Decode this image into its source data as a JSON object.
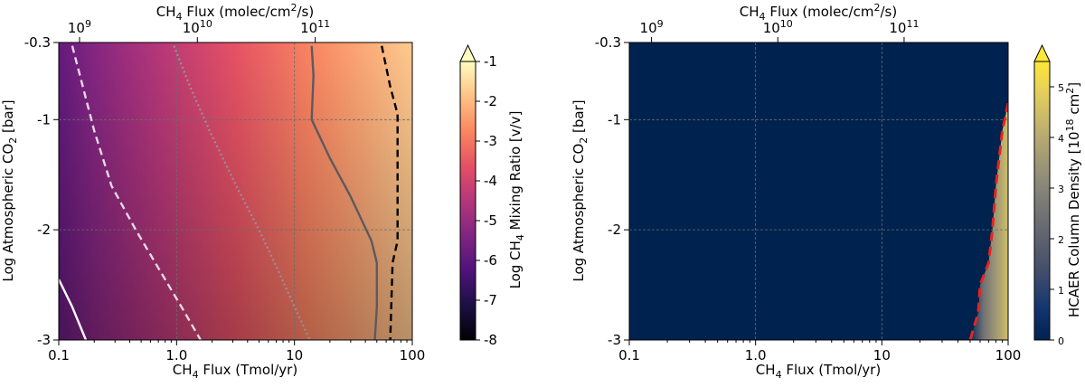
{
  "chart_data": [
    {
      "type": "heatmap",
      "panel": "left",
      "title": "",
      "xlabel_bottom": {
        "prefix": "CH",
        "sub": "4",
        "suffix": " Flux (Tmol/yr)"
      },
      "xlabel_top": {
        "prefix": "CH",
        "sub": "4",
        "mid": " Flux (molec/cm",
        "sup": "2",
        "suffix": "/s)"
      },
      "ylabel": {
        "prefix": "Log Atmospheric CO",
        "sub": "2",
        "suffix": " [bar]"
      },
      "xscale": "log",
      "xlim": [
        0.1,
        100
      ],
      "ylim": [
        -3,
        -0.3
      ],
      "x_ticks": [
        0.1,
        1.0,
        10,
        100
      ],
      "x_tick_labels": [
        "0.1",
        "1.0",
        "10",
        "100"
      ],
      "y_ticks": [
        -3,
        -2,
        -1,
        -0.3
      ],
      "y_tick_labels": [
        "-3",
        "-2",
        "-1",
        "-0.3"
      ],
      "top_ticks": [
        {
          "base": "10",
          "exp": "9",
          "tmol": 0.15
        },
        {
          "base": "10",
          "exp": "10",
          "tmol": 1.5
        },
        {
          "base": "10",
          "exp": "11",
          "tmol": 15
        }
      ],
      "grid": true,
      "colormap": "magma",
      "colorbar": {
        "label": {
          "prefix": "Log CH",
          "sub": "4",
          "suffix": " Mixing Ratio [v/v]"
        },
        "min": -8,
        "max": -1,
        "ticks": [
          -8,
          -7,
          -6,
          -5,
          -4,
          -3,
          -2,
          -1
        ],
        "tick_labels": [
          "-8",
          "-7",
          "-6",
          "-5",
          "-4",
          "-3",
          "-2",
          "-1"
        ],
        "extend": "max"
      },
      "contours": [
        {
          "name": "solid-white",
          "color": "#ffffff",
          "dash": "",
          "points": [
            [
              0.1,
              -2.45
            ],
            [
              0.13,
              -2.7
            ],
            [
              0.17,
              -3.0
            ]
          ]
        },
        {
          "name": "dashed-white",
          "color": "#e6d8e8",
          "dash": "8 5",
          "points": [
            [
              0.13,
              -0.33
            ],
            [
              0.16,
              -0.7
            ],
            [
              0.2,
              -1.1
            ],
            [
              0.28,
              -1.6
            ],
            [
              0.45,
              -2.0
            ],
            [
              0.75,
              -2.4
            ],
            [
              1.1,
              -2.7
            ],
            [
              1.6,
              -3.0
            ]
          ]
        },
        {
          "name": "dotted-grey",
          "color": "#a08a96",
          "dash": "2 3",
          "points": [
            [
              0.95,
              -0.33
            ],
            [
              1.3,
              -0.7
            ],
            [
              1.9,
              -1.1
            ],
            [
              3.2,
              -1.6
            ],
            [
              5.0,
              -2.0
            ],
            [
              7.5,
              -2.4
            ],
            [
              10.0,
              -2.7
            ],
            [
              13.5,
              -3.0
            ]
          ]
        },
        {
          "name": "solid-grey",
          "color": "#5c5a5f",
          "dash": "",
          "points": [
            [
              14.0,
              -0.33
            ],
            [
              14.5,
              -0.6
            ],
            [
              14.0,
              -1.0
            ],
            [
              20.0,
              -1.35
            ],
            [
              30.0,
              -1.7
            ],
            [
              45.0,
              -2.1
            ],
            [
              50.0,
              -2.3
            ],
            [
              50.0,
              -2.7
            ],
            [
              48.0,
              -3.0
            ]
          ]
        },
        {
          "name": "dashed-black",
          "color": "#000000",
          "dash": "8 5",
          "points": [
            [
              55.0,
              -0.33
            ],
            [
              65.0,
              -0.7
            ],
            [
              75.0,
              -0.95
            ],
            [
              75.0,
              -1.5
            ],
            [
              75.0,
              -2.1
            ],
            [
              68.0,
              -2.3
            ],
            [
              65.0,
              -3.0
            ]
          ]
        }
      ],
      "field_anchors": [
        {
          "x": 0.1,
          "y": -3.0,
          "v": -6.6
        },
        {
          "x": 100,
          "y": -3.0,
          "v": -2.0
        },
        {
          "x": 0.1,
          "y": -0.3,
          "v": -5.2
        },
        {
          "x": 100,
          "y": -0.3,
          "v": -1.5
        }
      ]
    },
    {
      "type": "heatmap",
      "panel": "right",
      "title": "",
      "xlabel_bottom": {
        "prefix": "CH",
        "sub": "4",
        "suffix": " Flux (Tmol/yr)"
      },
      "xlabel_top": {
        "prefix": "CH",
        "sub": "4",
        "mid": " Flux (molec/cm",
        "sup": "2",
        "suffix": "/s)"
      },
      "ylabel": {
        "prefix": "Log Atmospheric CO",
        "sub": "2",
        "suffix": " [bar]"
      },
      "xscale": "log",
      "xlim": [
        0.1,
        100
      ],
      "ylim": [
        -3,
        -0.3
      ],
      "x_ticks": [
        0.1,
        1.0,
        10,
        100
      ],
      "x_tick_labels": [
        "0.1",
        "1.0",
        "10",
        "100"
      ],
      "y_ticks": [
        -3,
        -2,
        -1,
        -0.3
      ],
      "y_tick_labels": [
        "-3",
        "-2",
        "-1",
        "-0.3"
      ],
      "top_ticks": [
        {
          "base": "10",
          "exp": "9",
          "tmol": 0.15
        },
        {
          "base": "10",
          "exp": "10",
          "tmol": 1.5
        },
        {
          "base": "10",
          "exp": "11",
          "tmol": 15
        }
      ],
      "grid": true,
      "colormap": "cividis",
      "background_color": "#00224e",
      "colorbar": {
        "label": {
          "prefix": "HCAER Column Density [10",
          "sup": "18",
          "mid": " cm",
          "sup2": "2",
          "suffix": "]"
        },
        "min": 0,
        "max": 5.5,
        "ticks": [
          0,
          1,
          2,
          3,
          4,
          5
        ],
        "tick_labels": [
          "0",
          "1",
          "2",
          "3",
          "4",
          "5"
        ],
        "extend": "max"
      },
      "haze_boundary": {
        "color": "#e8231e",
        "dash": "10 6",
        "points": [
          [
            100,
            -0.85
          ],
          [
            90,
            -1.1
          ],
          [
            80,
            -1.6
          ],
          [
            75,
            -2.0
          ],
          [
            70,
            -2.3
          ],
          [
            60,
            -2.5
          ],
          [
            58,
            -2.75
          ],
          [
            50,
            -3.0
          ]
        ]
      },
      "haze_max_value": 4.5
    }
  ]
}
